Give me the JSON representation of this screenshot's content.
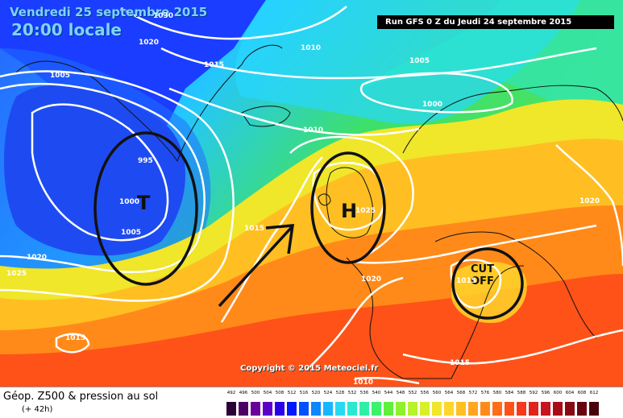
{
  "header": {
    "date": "Vendredi 25 septembre 2015",
    "time": "20:00 locale",
    "run": "Run GFS 0 Z du Jeudi 24 septembre 2015"
  },
  "annotations": {
    "low_symbol": "T",
    "high_symbol": "H",
    "cut_line1": "CUT",
    "cut_line2": "OFF"
  },
  "isobars": [
    "1030",
    "1020",
    "1015",
    "1005",
    "1010",
    "1005",
    "1000",
    "995",
    "1000",
    "1005",
    "1020",
    "1025",
    "1015",
    "1010",
    "1025",
    "1020",
    "1020",
    "1015",
    "1015",
    "1015",
    "1010"
  ],
  "copyright": "Copyright © 2015 Meteociel.fr",
  "footer": {
    "title": "Géop. Z500 & pression au sol",
    "subtitle": "(+ 42h)"
  },
  "legend_scale": {
    "values": [
      "492",
      "496",
      "500",
      "504",
      "508",
      "512",
      "516",
      "520",
      "524",
      "528",
      "532",
      "536",
      "540",
      "544",
      "548",
      "552",
      "556",
      "560",
      "564",
      "568",
      "572",
      "576",
      "580",
      "584",
      "588",
      "592",
      "596",
      "600",
      "604",
      "608",
      "612"
    ],
    "colors": [
      "#2a0036",
      "#4b0065",
      "#6a0099",
      "#5a00c8",
      "#2a00e6",
      "#0018ff",
      "#0050ff",
      "#0a86ff",
      "#17b6ff",
      "#27d9f2",
      "#2ae8d2",
      "#2df0a6",
      "#3af26c",
      "#5ef03a",
      "#8ef22a",
      "#b7f22a",
      "#d8ef2a",
      "#f0e62a",
      "#ffd52a",
      "#ffbf22",
      "#ffa51e",
      "#ff8a1a",
      "#ff6e18",
      "#ff5218",
      "#f43a1a",
      "#e0241c",
      "#c8141c",
      "#a80c18",
      "#880814",
      "#680410",
      "#48020a"
    ]
  },
  "colors": {
    "annotation": "#111111",
    "isobar": "#ffffff"
  }
}
